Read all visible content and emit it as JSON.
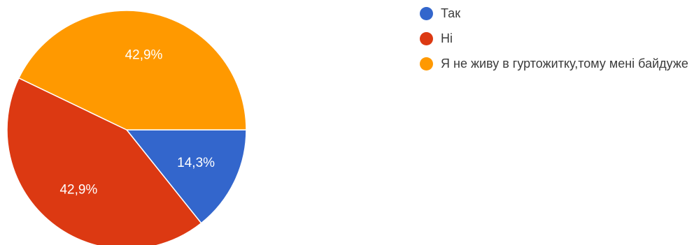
{
  "chart_data": {
    "type": "pie",
    "slices": [
      {
        "label": "Так",
        "value": 14.3,
        "value_label": "14,3%",
        "color": "#3366cc"
      },
      {
        "label": "Ні",
        "value": 42.9,
        "value_label": "42,9%",
        "color": "#dc3912"
      },
      {
        "label": "Я не живу в гуртожитку,тому мені байдуже",
        "value": 42.9,
        "value_label": "42,9%",
        "color": "#ff9900"
      }
    ],
    "start_direction": "3 o'clock",
    "slice_order": "clockwise",
    "legend_position": "right"
  }
}
